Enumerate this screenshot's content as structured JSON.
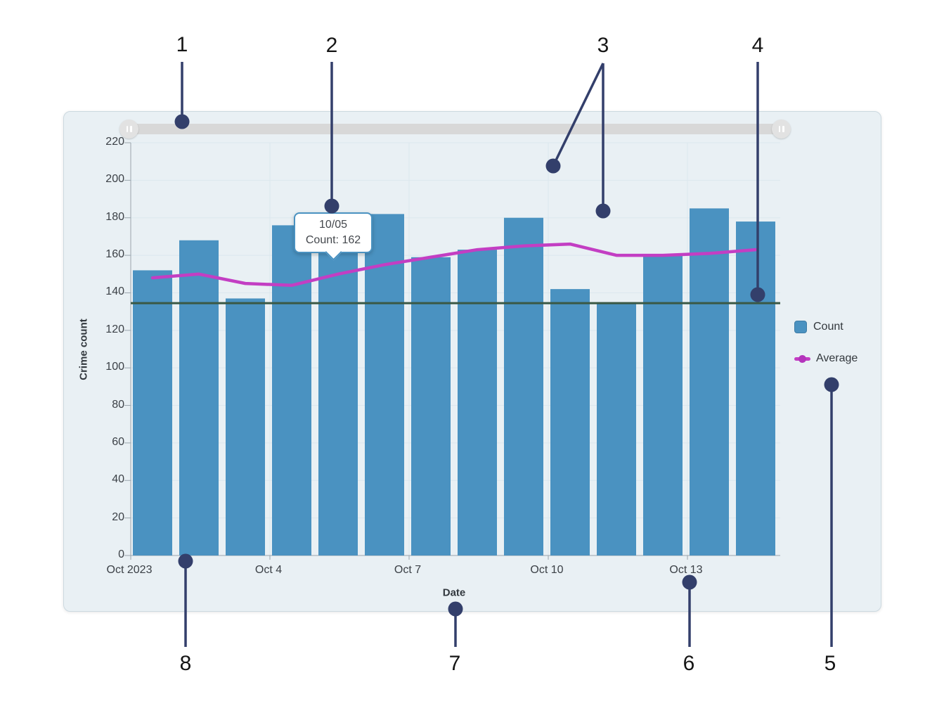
{
  "chart_data": {
    "type": "bar+line",
    "title": "",
    "xlabel": "Date",
    "ylabel": "Crime count",
    "x": [
      "Oct 1 2023",
      "Oct 2 2023",
      "Oct 3 2023",
      "Oct 4 2023",
      "Oct 5 2023",
      "Oct 6 2023",
      "Oct 7 2023",
      "Oct 8 2023",
      "Oct 9 2023",
      "Oct 10 2023",
      "Oct 11 2023",
      "Oct 12 2023",
      "Oct 13 2023",
      "Oct 14 2023"
    ],
    "series": [
      {
        "name": "Count",
        "type": "bar",
        "color": "#4a92c1",
        "values": [
          152,
          168,
          137,
          176,
          162,
          182,
          159,
          163,
          180,
          142,
          135,
          160,
          185,
          178
        ]
      },
      {
        "name": "Average",
        "type": "line",
        "color": "#c33ec3",
        "values": [
          148,
          150,
          145,
          144,
          150,
          155,
          159,
          163,
          165,
          166,
          160,
          160,
          161,
          163
        ]
      }
    ],
    "mean_line": {
      "value": 134.5,
      "color": "#3a5844"
    },
    "ylim": [
      0,
      220
    ],
    "y_ticks": [
      0,
      20,
      40,
      60,
      80,
      100,
      120,
      140,
      160,
      180,
      200,
      220
    ],
    "x_ticks": [
      {
        "label": "Oct 2023",
        "day_index": 0
      },
      {
        "label": "Oct 4",
        "day_index": 3
      },
      {
        "label": "Oct 7",
        "day_index": 6
      },
      {
        "label": "Oct 10",
        "day_index": 9
      },
      {
        "label": "Oct 13",
        "day_index": 12
      }
    ],
    "grid": true,
    "legend_position": "right"
  },
  "tooltip": {
    "title": "10/05",
    "value": "Count: 162"
  },
  "legend": {
    "items": [
      {
        "label": "Count"
      },
      {
        "label": "Average"
      }
    ]
  },
  "slider": {
    "left_handle_icon": "pause-bars",
    "right_handle_icon": "pause-bars"
  },
  "callouts": [
    {
      "label": "1",
      "num": [
        259,
        64
      ],
      "lines": [
        [
          259,
          88,
          259,
          173
        ]
      ],
      "dots": [
        [
          259,
          173
        ]
      ]
    },
    {
      "label": "2",
      "num": [
        472,
        65
      ],
      "lines": [
        [
          472,
          88,
          472,
          293
        ]
      ],
      "dots": [
        [
          472,
          293
        ]
      ]
    },
    {
      "label": "3",
      "num": [
        858,
        65
      ],
      "lines": [
        [
          858,
          90,
          858,
          300
        ],
        [
          858,
          90,
          787,
          236
        ]
      ],
      "dots": [
        [
          858,
          300
        ],
        [
          787,
          236
        ]
      ]
    },
    {
      "label": "4",
      "num": [
        1078,
        65
      ],
      "lines": [
        [
          1078,
          88,
          1078,
          419
        ]
      ],
      "dots": [
        [
          1078,
          419
        ]
      ]
    },
    {
      "label": "5",
      "num": [
        1181,
        944
      ],
      "lines": [
        [
          1183,
          547,
          1183,
          920
        ]
      ],
      "dots": [
        [
          1183,
          547
        ]
      ]
    },
    {
      "label": "6",
      "num": [
        980,
        944
      ],
      "lines": [
        [
          981,
          828,
          981,
          920
        ]
      ],
      "dots": [
        [
          981,
          828
        ]
      ]
    },
    {
      "label": "7",
      "num": [
        647,
        944
      ],
      "lines": [
        [
          648,
          866,
          648,
          920
        ]
      ],
      "dots": [
        [
          648,
          866
        ]
      ]
    },
    {
      "label": "8",
      "num": [
        264,
        944
      ],
      "lines": [
        [
          264,
          798,
          264,
          920
        ]
      ],
      "dots": [
        [
          264,
          798
        ]
      ]
    }
  ],
  "colors": {
    "bar": "#4a92c1",
    "average_line": "#c33ec3",
    "mean_line": "#3a5844",
    "callout": "#333f6b",
    "panel_bg": "#e9f0f4",
    "slider_track": "#d8d8d8"
  }
}
